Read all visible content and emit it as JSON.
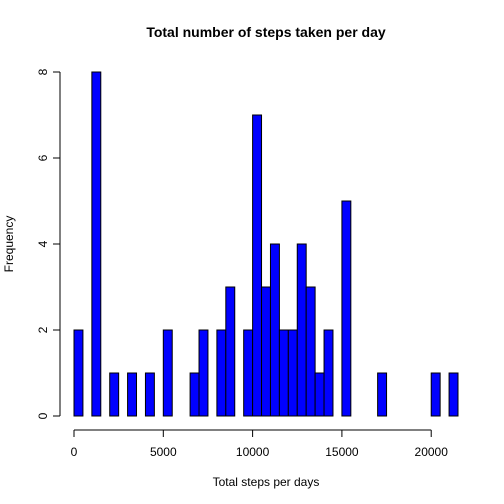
{
  "chart_data": {
    "type": "bar",
    "title": "Total number of steps taken per day",
    "xlabel": "Total steps per days",
    "ylabel": "Frequency",
    "xlim": [
      0,
      21500
    ],
    "ylim": [
      0,
      8
    ],
    "bin_width": 500,
    "x_ticks": [
      0,
      5000,
      10000,
      15000,
      20000
    ],
    "y_ticks": [
      0,
      2,
      4,
      6,
      8
    ],
    "bar_color": "#0000FF",
    "bar_border_color": "#000000",
    "grid": false,
    "legend": "none",
    "bins": [
      {
        "x_start": 0,
        "x_end": 500,
        "count": 2
      },
      {
        "x_start": 1000,
        "x_end": 1500,
        "count": 8
      },
      {
        "x_start": 2000,
        "x_end": 2500,
        "count": 1
      },
      {
        "x_start": 3000,
        "x_end": 3500,
        "count": 1
      },
      {
        "x_start": 4000,
        "x_end": 4500,
        "count": 1
      },
      {
        "x_start": 5000,
        "x_end": 5500,
        "count": 2
      },
      {
        "x_start": 6500,
        "x_end": 7000,
        "count": 1
      },
      {
        "x_start": 7000,
        "x_end": 7500,
        "count": 2
      },
      {
        "x_start": 8000,
        "x_end": 8500,
        "count": 2
      },
      {
        "x_start": 8500,
        "x_end": 9000,
        "count": 3
      },
      {
        "x_start": 9500,
        "x_end": 10000,
        "count": 2
      },
      {
        "x_start": 10000,
        "x_end": 10500,
        "count": 7
      },
      {
        "x_start": 10500,
        "x_end": 11000,
        "count": 3
      },
      {
        "x_start": 11000,
        "x_end": 11500,
        "count": 4
      },
      {
        "x_start": 11500,
        "x_end": 12000,
        "count": 2
      },
      {
        "x_start": 12000,
        "x_end": 12500,
        "count": 2
      },
      {
        "x_start": 12500,
        "x_end": 13000,
        "count": 4
      },
      {
        "x_start": 13000,
        "x_end": 13500,
        "count": 3
      },
      {
        "x_start": 13500,
        "x_end": 14000,
        "count": 1
      },
      {
        "x_start": 14000,
        "x_end": 14500,
        "count": 2
      },
      {
        "x_start": 15000,
        "x_end": 15500,
        "count": 5
      },
      {
        "x_start": 17000,
        "x_end": 17500,
        "count": 1
      },
      {
        "x_start": 20000,
        "x_end": 20500,
        "count": 1
      },
      {
        "x_start": 21000,
        "x_end": 21500,
        "count": 1
      }
    ]
  }
}
